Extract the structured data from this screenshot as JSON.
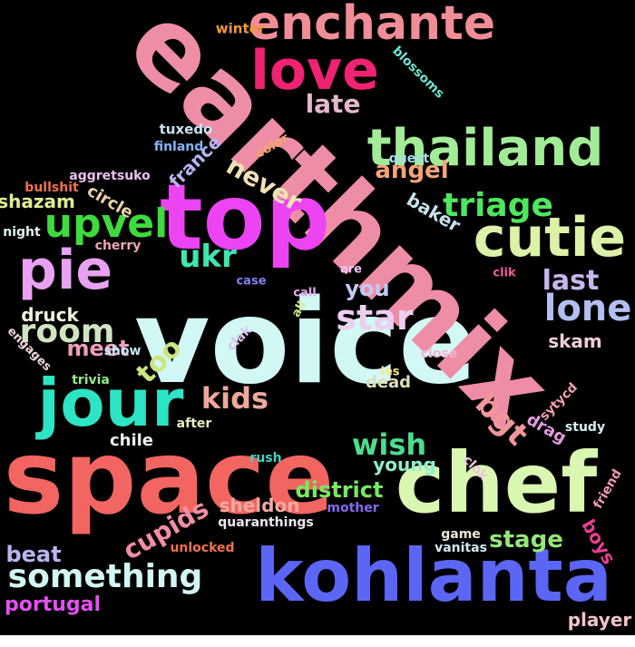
{
  "words": [
    {
      "text": "voice",
      "color": "#d2f8f6",
      "rotate": 0
    },
    {
      "text": "earthmix",
      "color": "#ee8da6",
      "rotate": 45
    },
    {
      "text": "space",
      "color": "#f26560",
      "rotate": 0
    },
    {
      "text": "top",
      "color": "#ec44f3",
      "rotate": 0
    },
    {
      "text": "chef",
      "color": "#d9f7b1",
      "rotate": 0
    },
    {
      "text": "kohlanta",
      "color": "#5b66f5",
      "rotate": 0
    },
    {
      "text": "jour",
      "color": "#2de4c4",
      "rotate": 0
    },
    {
      "text": "love",
      "color": "#f02272",
      "rotate": 0
    },
    {
      "text": "enchante",
      "color": "#f08d96",
      "rotate": 0
    },
    {
      "text": "thailand",
      "color": "#a3ec97",
      "rotate": 0
    },
    {
      "text": "cutie",
      "color": "#dcf2a8",
      "rotate": 0
    },
    {
      "text": "pie",
      "color": "#e9a1f1",
      "rotate": 0
    },
    {
      "text": "upvel",
      "color": "#3ddb3d",
      "rotate": 0
    },
    {
      "text": "room",
      "color": "#cfe5c1",
      "rotate": 0
    },
    {
      "text": "ukr",
      "color": "#3de7b1",
      "rotate": 0
    },
    {
      "text": "star",
      "color": "#eccff0",
      "rotate": 0
    },
    {
      "text": "lone",
      "color": "#b2bff0",
      "rotate": 0
    },
    {
      "text": "last",
      "color": "#c7b7ee",
      "rotate": 0
    },
    {
      "text": "triage",
      "color": "#4ee75d",
      "rotate": 0
    },
    {
      "text": "angel",
      "color": "#f5a477",
      "rotate": 0
    },
    {
      "text": "late",
      "color": "#e3b8cd",
      "rotate": 0
    },
    {
      "text": "never",
      "color": "#f2e2b6",
      "rotate": 30
    },
    {
      "text": "something",
      "color": "#d2f6f4",
      "rotate": 0
    },
    {
      "text": "kids",
      "color": "#eea79c",
      "rotate": 0
    },
    {
      "text": "bgt",
      "color": "#f29798",
      "rotate": 45
    },
    {
      "text": "wish",
      "color": "#4bdd8e",
      "rotate": 0
    },
    {
      "text": "too",
      "color": "#cbe57f",
      "rotate": -45
    },
    {
      "text": "meet",
      "color": "#ee9dbd",
      "rotate": 0
    },
    {
      "text": "cupids",
      "color": "#f28fa1",
      "rotate": -30
    },
    {
      "text": "district",
      "color": "#76ea60",
      "rotate": 0
    },
    {
      "text": "stage",
      "color": "#94e77b",
      "rotate": 0
    },
    {
      "text": "beat",
      "color": "#b8b5f0",
      "rotate": 0
    },
    {
      "text": "you",
      "color": "#c2c9f4",
      "rotate": 0
    },
    {
      "text": "skam",
      "color": "#edcddb",
      "rotate": 0
    },
    {
      "text": "druck",
      "color": "#f2f2dd",
      "rotate": 0
    },
    {
      "text": "baker",
      "color": "#c5e3ef",
      "rotate": 30
    },
    {
      "text": "france",
      "color": "#b6b4ef",
      "rotate": -45
    },
    {
      "text": "shazam",
      "color": "#e2ec90",
      "rotate": 0
    },
    {
      "text": "circle",
      "color": "#e9d4a8",
      "rotate": 30
    },
    {
      "text": "sheldon",
      "color": "#f1a9a0",
      "rotate": 0
    },
    {
      "text": "young",
      "color": "#8ef0cc",
      "rotate": 0
    },
    {
      "text": "portugal",
      "color": "#e54ff0",
      "rotate": 0
    },
    {
      "text": "boys",
      "color": "#ee3d92",
      "rotate": 60
    },
    {
      "text": "player",
      "color": "#f1c3c8",
      "rotate": 0
    },
    {
      "text": "drag",
      "color": "#e19ae0",
      "rotate": 30
    },
    {
      "text": "dead",
      "color": "#dce0b6",
      "rotate": 0
    },
    {
      "text": "chile",
      "color": "#edf1e9",
      "rotate": 0
    },
    {
      "text": "winter",
      "color": "#f29638",
      "rotate": 0
    },
    {
      "text": "blossoms",
      "color": "#69e5d2",
      "rotate": 45
    },
    {
      "text": "tuxedo",
      "color": "#c9e2f2",
      "rotate": 0
    },
    {
      "text": "finland",
      "color": "#84b4f4",
      "rotate": 0
    },
    {
      "text": "quest",
      "color": "#a8ddf0",
      "rotate": 0
    },
    {
      "text": "color",
      "color": "#f3a86a",
      "rotate": -30
    },
    {
      "text": "aggretsuko",
      "color": "#eac0ef",
      "rotate": 0
    },
    {
      "text": "bullshit",
      "color": "#f2724b",
      "rotate": 0
    },
    {
      "text": "night",
      "color": "#e1f2f1",
      "rotate": 0
    },
    {
      "text": "cherry",
      "color": "#eca6b5",
      "rotate": 0
    },
    {
      "text": "case",
      "color": "#7f82f1",
      "rotate": 0
    },
    {
      "text": "are",
      "color": "#f2c6f4",
      "rotate": 0
    },
    {
      "text": "call",
      "color": "#e9aaf1",
      "rotate": 0
    },
    {
      "text": "all",
      "color": "#d1ec88",
      "rotate": -60
    },
    {
      "text": "clik",
      "color": "#f05b9a",
      "rotate": 0
    },
    {
      "text": "show",
      "color": "#c4e8f6",
      "rotate": 0
    },
    {
      "text": "clak",
      "color": "#dac1ec",
      "rotate": -45
    },
    {
      "text": "engages",
      "color": "#f0d6dc",
      "rotate": 45
    },
    {
      "text": "trivia",
      "color": "#93ec84",
      "rotate": 0
    },
    {
      "text": "les",
      "color": "#f5ea89",
      "rotate": 0
    },
    {
      "text": "close",
      "color": "#f3b7d5",
      "rotate": 0
    },
    {
      "text": "sytycd",
      "color": "#f2a1b1",
      "rotate": -45
    },
    {
      "text": "study",
      "color": "#d4eff3",
      "rotate": 0
    },
    {
      "text": "after",
      "color": "#e8f0c4",
      "rotate": 0
    },
    {
      "text": "rush",
      "color": "#43d2bf",
      "rotate": 0
    },
    {
      "text": "clok",
      "color": "#f1c3dd",
      "rotate": 45
    },
    {
      "text": "friend",
      "color": "#ee97bb",
      "rotate": -60
    },
    {
      "text": "mother",
      "color": "#8769ee",
      "rotate": 0
    },
    {
      "text": "quaranthings",
      "color": "#f0e7f4",
      "rotate": 0
    },
    {
      "text": "game",
      "color": "#f1e7d8",
      "rotate": 0
    },
    {
      "text": "vanitas",
      "color": "#d0ebf5",
      "rotate": 0
    },
    {
      "text": "unlocked",
      "color": "#f2734b",
      "rotate": 0
    }
  ]
}
